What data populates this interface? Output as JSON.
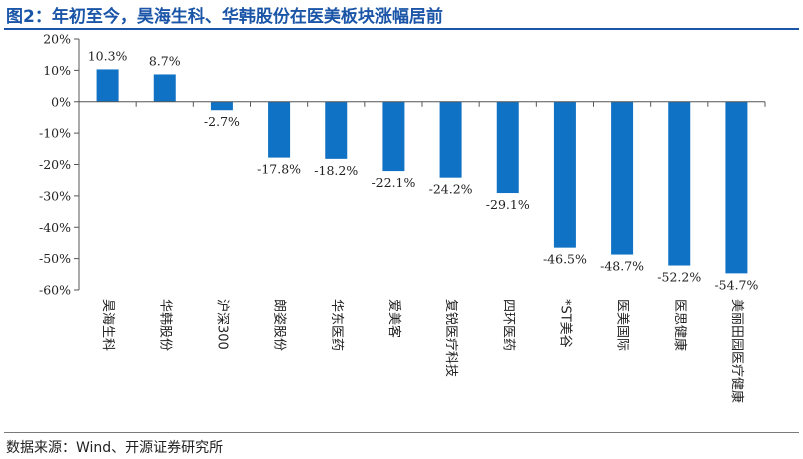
{
  "title": "图2：年初至今，昊海生科、华韩股份在医美板块涨幅居前",
  "source": "数据来源：Wind、开源证券研究所",
  "chart_data": {
    "type": "bar",
    "categories": [
      "昊海生科",
      "华韩股份",
      "沪深300",
      "朗姿股份",
      "华东医药",
      "爱美客",
      "复锐医疗科技",
      "四环医药",
      "*ST美谷",
      "医美国际",
      "医思健康",
      "美丽田园医疗健康"
    ],
    "values": [
      10.3,
      8.7,
      -2.7,
      -17.8,
      -18.2,
      -22.1,
      -24.2,
      -29.1,
      -46.5,
      -48.7,
      -52.2,
      -54.7
    ],
    "data_labels": [
      "10.3%",
      "8.7%",
      "-2.7%",
      "-17.8%",
      "-18.2%",
      "-22.1%",
      "-24.2%",
      "-29.1%",
      "-46.5%",
      "-48.7%",
      "-52.2%",
      "-54.7%"
    ],
    "y_ticks": [
      20,
      10,
      0,
      -10,
      -20,
      -30,
      -40,
      -50,
      -60
    ],
    "y_tick_labels": [
      "20%",
      "10%",
      "0%",
      "-10%",
      "-20%",
      "-30%",
      "-40%",
      "-50%",
      "-60%"
    ],
    "ylim": [
      -60,
      20
    ],
    "grid": false,
    "bar_color": "#1072c4"
  }
}
